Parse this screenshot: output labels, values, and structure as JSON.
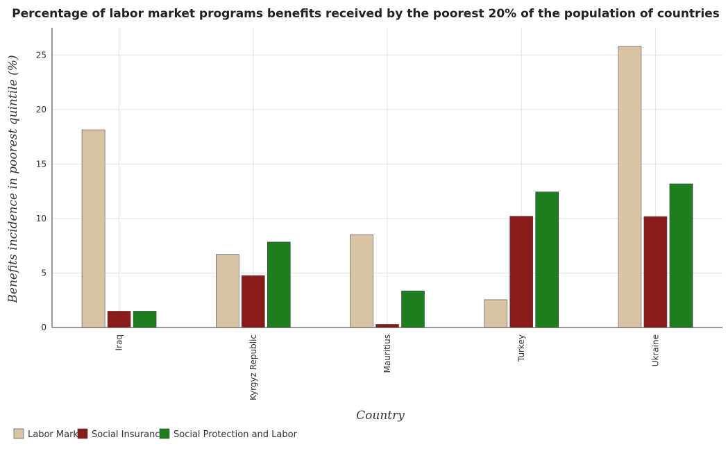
{
  "chart_data": {
    "type": "bar",
    "title": "Percentage of labor market programs benefits received by the poorest 20% of the population of countries",
    "xlabel": "Country",
    "ylabel": "Benefits incidence in poorest quintile (%)",
    "ylim": [
      0,
      27.5
    ],
    "yticks": [
      0,
      5,
      10,
      15,
      20,
      25
    ],
    "grid": true,
    "legend_position": "bottom-left",
    "categories": [
      "Iraq",
      "Kyrgyz Republic",
      "Mauritius",
      "Turkey",
      "Ukraine"
    ],
    "series": [
      {
        "name": "Labor Market",
        "color": "#d8c3a5",
        "values": [
          18.14,
          6.7,
          8.52,
          2.55,
          25.8
        ]
      },
      {
        "name": "Social Insurance",
        "color": "#8b1a1a",
        "values": [
          1.5,
          4.76,
          0.29,
          10.21,
          10.18
        ]
      },
      {
        "name": "Social Protection and Labor",
        "color": "#1e7d1e",
        "values": [
          1.5,
          7.84,
          3.36,
          12.44,
          13.18
        ]
      }
    ]
  }
}
